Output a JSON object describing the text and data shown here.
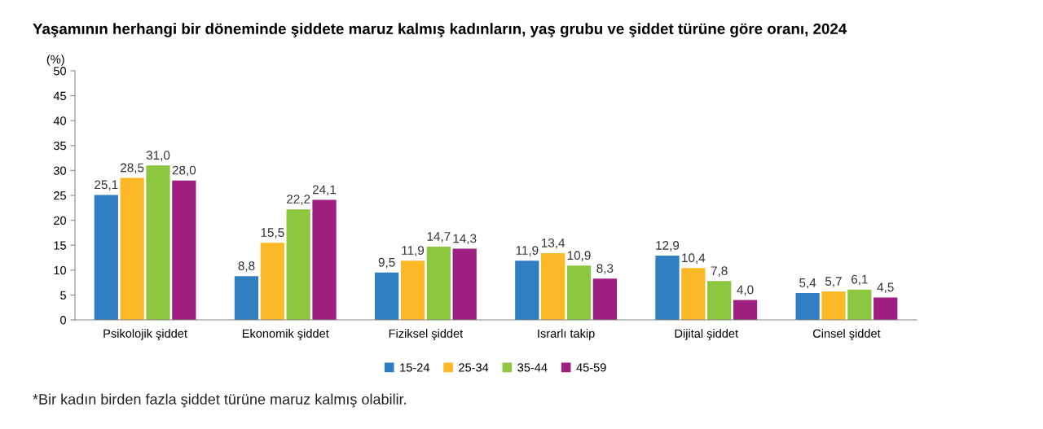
{
  "chart_data": {
    "type": "bar",
    "title": "Yaşamının herhangi bir döneminde şiddete maruz kalmış kadınların, yaş grubu ve şiddet türüne göre oranı, 2024",
    "ylabel": "(%)",
    "categories": [
      "Psikolojik şiddet",
      "Ekonomik şiddet",
      "Fiziksel şiddet",
      "Israrlı takip",
      "Dijital şiddet",
      "Cinsel şiddet"
    ],
    "series": [
      {
        "name": "15-24",
        "color": "#2f7ec1",
        "values": [
          25.1,
          8.8,
          9.5,
          11.9,
          12.9,
          5.4
        ],
        "value_labels": [
          "25,1",
          "8,8",
          "9,5",
          "11,9",
          "12,9",
          "5,4"
        ]
      },
      {
        "name": "25-34",
        "color": "#fdb827",
        "values": [
          28.5,
          15.5,
          11.9,
          13.4,
          10.4,
          5.7
        ],
        "value_labels": [
          "28,5",
          "15,5",
          "11,9",
          "13,4",
          "10,4",
          "5,7"
        ]
      },
      {
        "name": "35-44",
        "color": "#8dc63f",
        "values": [
          31.0,
          22.2,
          14.7,
          10.9,
          7.8,
          6.1
        ],
        "value_labels": [
          "31,0",
          "22,2",
          "14,7",
          "10,9",
          "7,8",
          "6,1"
        ]
      },
      {
        "name": "45-59",
        "color": "#9e1f7f",
        "values": [
          28.0,
          24.1,
          14.3,
          8.3,
          4.0,
          4.5
        ],
        "value_labels": [
          "28,0",
          "24,1",
          "14,3",
          "8,3",
          "4,0",
          "4,5"
        ]
      }
    ],
    "ylim": [
      0,
      50
    ],
    "yticks": [
      0,
      5,
      10,
      15,
      20,
      25,
      30,
      35,
      40,
      45,
      50
    ],
    "grid": false,
    "legend": "bottom",
    "annotations": [
      "*Bir kadın birden fazla şiddet türüne maruz kalmış olabilir."
    ]
  }
}
